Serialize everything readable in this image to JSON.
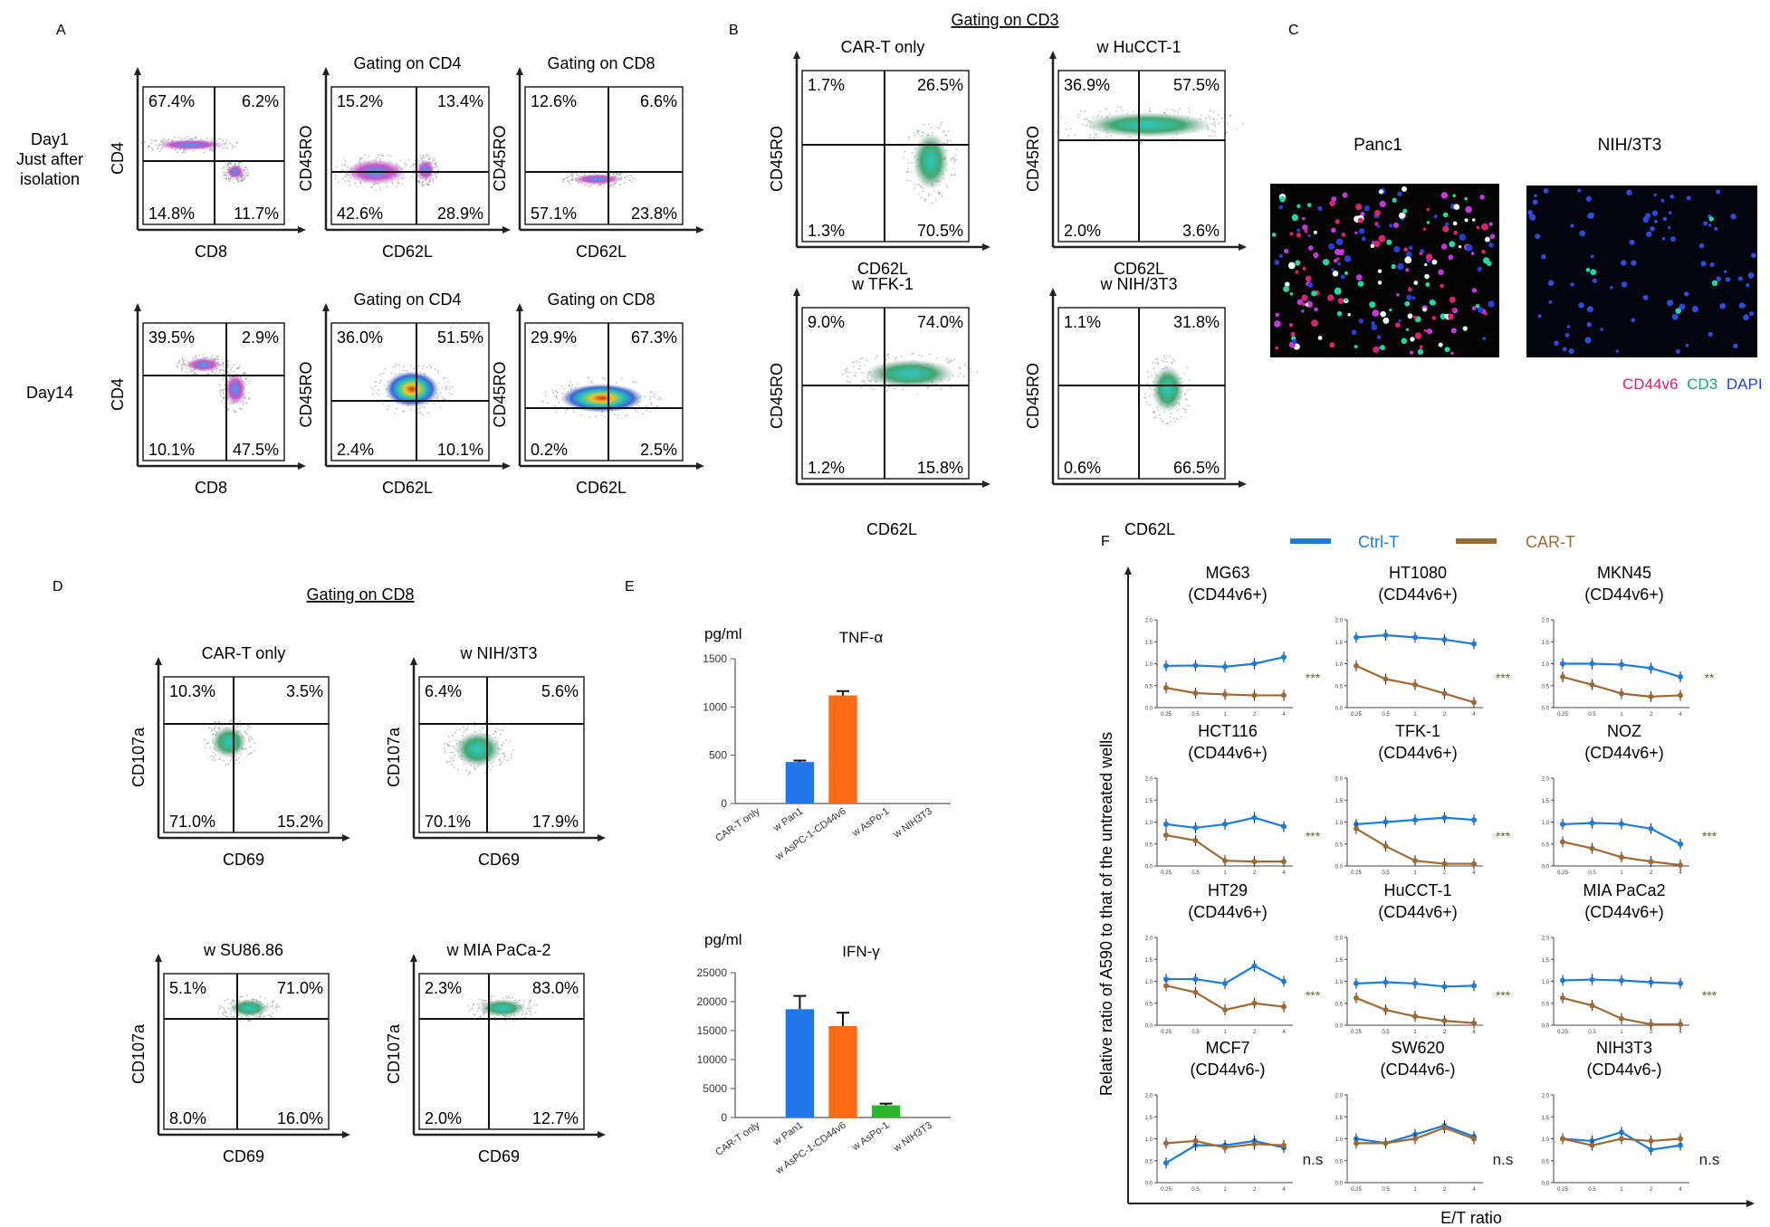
{
  "panels": {
    "A": {
      "letter": "A",
      "row1_label": [
        "Day1",
        "Just after",
        "isolation"
      ],
      "row2_label": "Day14",
      "plots": [
        {
          "ylabel": "CD4",
          "xlabel": "CD8",
          "title": "",
          "q": [
            "67.4%",
            "6.2%",
            "14.8%",
            "11.7%"
          ]
        },
        {
          "ylabel": "CD45RO",
          "xlabel": "CD62L",
          "title": "Gating on CD4",
          "q": [
            "15.2%",
            "13.4%",
            "42.6%",
            "28.9%"
          ]
        },
        {
          "ylabel": "CD45RO",
          "xlabel": "CD62L",
          "title": "Gating on CD8",
          "q": [
            "12.6%",
            "6.6%",
            "57.1%",
            "23.8%"
          ]
        },
        {
          "ylabel": "CD4",
          "xlabel": "CD8",
          "title": "",
          "q": [
            "39.5%",
            "2.9%",
            "10.1%",
            "47.5%"
          ]
        },
        {
          "ylabel": "CD45RO",
          "xlabel": "CD62L",
          "title": "Gating on CD4",
          "q": [
            "36.0%",
            "51.5%",
            "2.4%",
            "10.1%"
          ]
        },
        {
          "ylabel": "CD45RO",
          "xlabel": "CD62L",
          "title": "Gating on CD8",
          "q": [
            "29.9%",
            "67.3%",
            "0.2%",
            "2.5%"
          ]
        }
      ]
    },
    "B": {
      "letter": "B",
      "header": "Gating on CD3",
      "plots": [
        {
          "ylabel": "CD45RO",
          "xlabel": "CD62L",
          "title": "CAR-T only",
          "q": [
            "1.7%",
            "26.5%",
            "1.3%",
            "70.5%"
          ]
        },
        {
          "ylabel": "CD45RO",
          "xlabel": "CD62L",
          "title": "w HuCCT-1",
          "q": [
            "36.9%",
            "57.5%",
            "2.0%",
            "3.6%"
          ]
        },
        {
          "ylabel": "CD45RO",
          "xlabel": "",
          "title": "w TFK-1",
          "q": [
            "9.0%",
            "74.0%",
            "1.2%",
            "15.8%"
          ]
        },
        {
          "ylabel": "CD45RO",
          "xlabel": "",
          "title": "w NIH/3T3",
          "q": [
            "1.1%",
            "31.8%",
            "0.6%",
            "66.5%"
          ]
        }
      ],
      "bottom_xlabels": [
        "CD62L",
        "CD62L"
      ]
    },
    "C": {
      "letter": "C",
      "titles": [
        "Panc1",
        "NIH/3T3"
      ],
      "legend": [
        {
          "text": "CD44v6",
          "color": "#d6246e"
        },
        {
          "text": "CD3",
          "color": "#1aa37a"
        },
        {
          "text": "DAPI",
          "color": "#2545c8"
        }
      ]
    },
    "D": {
      "letter": "D",
      "header": "Gating on CD8",
      "plots": [
        {
          "ylabel": "CD107a",
          "xlabel": "CD69",
          "title": "CAR-T only",
          "q": [
            "10.3%",
            "3.5%",
            "71.0%",
            "15.2%"
          ]
        },
        {
          "ylabel": "CD107a",
          "xlabel": "CD69",
          "title": "w NIH/3T3",
          "q": [
            "6.4%",
            "5.6%",
            "70.1%",
            "17.9%"
          ]
        },
        {
          "ylabel": "CD107a",
          "xlabel": "CD69",
          "title": "w SU86.86",
          "q": [
            "5.1%",
            "71.0%",
            "8.0%",
            "16.0%"
          ]
        },
        {
          "ylabel": "CD107a",
          "xlabel": "CD69",
          "title": "w MIA PaCa-2",
          "q": [
            "2.3%",
            "83.0%",
            "2.0%",
            "12.7%"
          ]
        }
      ]
    },
    "E": {
      "letter": "E",
      "unit": "pg/ml",
      "categories": [
        "CAR-T only",
        "w Pan1",
        "w AsPC-1-CD44v6",
        "w AsPo-1",
        "w NIH3T3"
      ],
      "colors": [
        "#1f77e8",
        "#1f77e8",
        "#ff6a14",
        "#2ab52a",
        "#1f77e8"
      ]
    },
    "F": {
      "letter": "F",
      "legend": [
        {
          "text": "Ctrl-T",
          "color": "#1f7bd8"
        },
        {
          "text": "CAR-T",
          "color": "#9c6a35"
        }
      ],
      "ylabel": "Relative ratio of A590 to that of the untreated wells",
      "xlabel": "E/T ratio"
    }
  },
  "chart_data": [
    {
      "type": "bar",
      "id": "E-TNF",
      "title": "TNF-α",
      "ylabel": "pg/ml",
      "categories": [
        "CAR-T only",
        "w Pan1",
        "w AsPC-1-CD44v6",
        "w AsPo-1",
        "w NIH3T3"
      ],
      "values": [
        0,
        430,
        1120,
        0,
        0
      ],
      "errors": [
        0,
        15,
        45,
        0,
        0
      ],
      "ylim": [
        0,
        1500
      ],
      "yticks": [
        "0",
        "500",
        "1000",
        "1500"
      ]
    },
    {
      "type": "bar",
      "id": "E-IFN",
      "title": "IFN-γ",
      "ylabel": "pg/ml",
      "categories": [
        "CAR-T only",
        "w Pan1",
        "w AsPC-1-CD44v6",
        "w AsPo-1",
        "w NIH3T3"
      ],
      "values": [
        0,
        18700,
        15800,
        2100,
        0
      ],
      "errors": [
        0,
        2300,
        2300,
        300,
        0
      ],
      "ylim": [
        0,
        25000
      ],
      "yticks": [
        "0",
        "5000",
        "10000",
        "15000",
        "20000",
        "25000"
      ]
    },
    {
      "type": "line",
      "id": "F-panels",
      "x": [
        "0.25",
        "0.5",
        "1",
        "2",
        "4"
      ],
      "ylim": [
        0,
        2.0
      ],
      "subplots": [
        {
          "name": "MG63",
          "sub": "(CD44v6+)",
          "sig": "***",
          "ctrl": [
            0.95,
            0.96,
            0.93,
            1.0,
            1.15
          ],
          "car": [
            0.45,
            0.33,
            0.3,
            0.28,
            0.28
          ]
        },
        {
          "name": "HT1080",
          "sub": "(CD44v6+)",
          "sig": "***",
          "ctrl": [
            1.6,
            1.65,
            1.6,
            1.55,
            1.45
          ],
          "car": [
            0.95,
            0.65,
            0.52,
            0.32,
            0.12
          ]
        },
        {
          "name": "MKN45",
          "sub": "(CD44v6+)",
          "sig": "**",
          "ctrl": [
            1.0,
            1.0,
            0.98,
            0.9,
            0.7
          ],
          "car": [
            0.7,
            0.52,
            0.32,
            0.25,
            0.28
          ]
        },
        {
          "name": "HCT116",
          "sub": "(CD44v6+)",
          "sig": "***",
          "ctrl": [
            0.95,
            0.87,
            0.95,
            1.1,
            0.9
          ],
          "car": [
            0.7,
            0.58,
            0.12,
            0.1,
            0.1
          ]
        },
        {
          "name": "TFK-1",
          "sub": "(CD44v6+)",
          "sig": "***",
          "ctrl": [
            0.95,
            1.0,
            1.05,
            1.1,
            1.05
          ],
          "car": [
            0.85,
            0.45,
            0.12,
            0.05,
            0.05
          ]
        },
        {
          "name": "NOZ",
          "sub": "(CD44v6+)",
          "sig": "***",
          "ctrl": [
            0.95,
            0.98,
            0.96,
            0.85,
            0.5
          ],
          "car": [
            0.55,
            0.4,
            0.2,
            0.1,
            0.02
          ]
        },
        {
          "name": "HT29",
          "sub": "(CD44v6+)",
          "sig": "***",
          "ctrl": [
            1.05,
            1.05,
            0.95,
            1.35,
            1.0
          ],
          "car": [
            0.9,
            0.75,
            0.35,
            0.5,
            0.42
          ]
        },
        {
          "name": "HuCCT-1",
          "sub": "(CD44v6+)",
          "sig": "***",
          "ctrl": [
            0.95,
            0.98,
            0.95,
            0.88,
            0.9
          ],
          "car": [
            0.62,
            0.35,
            0.2,
            0.1,
            0.05
          ]
        },
        {
          "name": "MIA PaCa2",
          "sub": "(CD44v6+)",
          "sig": "***",
          "ctrl": [
            1.02,
            1.04,
            1.02,
            0.98,
            0.95
          ],
          "car": [
            0.62,
            0.45,
            0.15,
            0.02,
            0.02
          ]
        },
        {
          "name": "MCF7",
          "sub": "(CD44v6-)",
          "sig": "n.s",
          "ctrl": [
            0.45,
            0.85,
            0.85,
            0.95,
            0.8
          ],
          "car": [
            0.9,
            0.95,
            0.8,
            0.88,
            0.85
          ]
        },
        {
          "name": "SW620",
          "sub": "(CD44v6-)",
          "sig": "n.s",
          "ctrl": [
            1.0,
            0.9,
            1.1,
            1.3,
            1.05
          ],
          "car": [
            0.9,
            0.9,
            1.0,
            1.25,
            1.0
          ]
        },
        {
          "name": "NIH3T3",
          "sub": "(CD44v6-)",
          "sig": "n.s",
          "ctrl": [
            1.0,
            0.95,
            1.15,
            0.75,
            0.85
          ],
          "car": [
            1.0,
            0.85,
            1.0,
            0.95,
            1.0
          ]
        }
      ]
    }
  ]
}
